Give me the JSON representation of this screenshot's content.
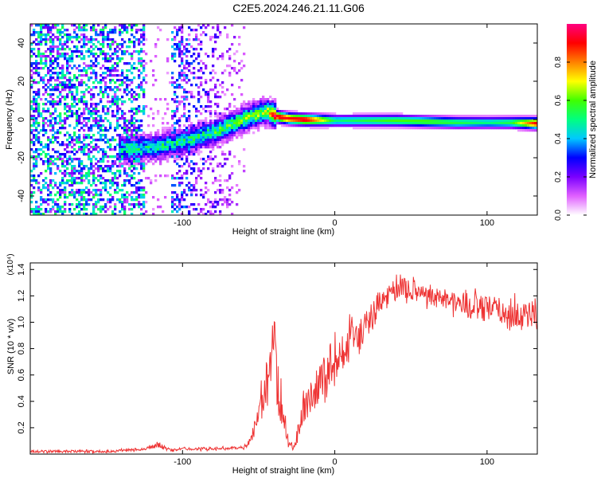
{
  "title": "C2E5.2024.246.21.11.G06",
  "chart_data": [
    {
      "type": "heatmap",
      "name": "spectrogram",
      "xlabel": "Height of straight line (km)",
      "ylabel": "Frequency (Hz)",
      "xlim": [
        -200,
        133
      ],
      "ylim": [
        -50,
        50
      ],
      "xticks": [
        -100,
        0,
        100
      ],
      "xtick_labels": [
        "-100",
        "0",
        "100"
      ],
      "yticks": [
        -40,
        -20,
        0,
        20,
        40
      ],
      "ytick_labels": [
        "-40",
        "-20",
        "0",
        "20",
        "40"
      ],
      "colorbar": {
        "label": "Normalized spectral amplitude",
        "range": [
          0,
          1
        ],
        "ticks": [
          0.0,
          0.2,
          0.4,
          0.6,
          0.8
        ],
        "tick_labels": [
          "0.0",
          "0.2",
          "0.4",
          "0.6",
          "0.8"
        ],
        "colors": [
          "#ffffff",
          "#e060ff",
          "#7a00ff",
          "#0000ff",
          "#00c8ff",
          "#00ff80",
          "#40ff00",
          "#ffff00",
          "#ff8000",
          "#ff0000",
          "#ff0080"
        ]
      },
      "ridge": {
        "x": [
          -140,
          -120,
          -100,
          -80,
          -60,
          -45,
          -38,
          -30,
          -20,
          0,
          20,
          40,
          60,
          80,
          100,
          115,
          133
        ],
        "y": [
          -15,
          -14,
          -11,
          -6,
          1,
          5,
          2,
          1,
          0.5,
          0,
          0,
          0,
          -0.5,
          -1,
          -1,
          -1,
          -1.5
        ],
        "amplitude": [
          0.3,
          0.35,
          0.35,
          0.4,
          0.45,
          0.5,
          0.95,
          0.9,
          0.95,
          0.5,
          0.55,
          0.6,
          0.6,
          0.55,
          0.5,
          0.55,
          0.95
        ]
      }
    },
    {
      "type": "line",
      "name": "snr",
      "xlabel": "Height of straight line (km)",
      "ylabel": "SNR (10 * v/v)",
      "y_multiplier": "(x10⁴)",
      "xlim": [
        -200,
        133
      ],
      "ylim": [
        0,
        1.45
      ],
      "xticks": [
        -100,
        0,
        100
      ],
      "xtick_labels": [
        "-100",
        "0",
        "100"
      ],
      "yticks": [
        0.2,
        0.4,
        0.6,
        0.8,
        1.0,
        1.2,
        1.4
      ],
      "ytick_labels": [
        "0.2",
        "0.4",
        "0.6",
        "0.8",
        "1.0",
        "1.2",
        "1.4"
      ],
      "color": "#ee3333",
      "series": [
        {
          "name": "SNR",
          "x": [
            -200,
            -180,
            -150,
            -125,
            -115,
            -108,
            -100,
            -80,
            -60,
            -55,
            -50,
            -46,
            -43,
            -40,
            -37,
            -33,
            -30,
            -27,
            -24,
            -20,
            -10,
            0,
            10,
            20,
            30,
            40,
            50,
            60,
            70,
            80,
            90,
            100,
            110,
            120,
            133
          ],
          "y": [
            0.02,
            0.02,
            0.02,
            0.04,
            0.07,
            0.03,
            0.04,
            0.04,
            0.05,
            0.1,
            0.3,
            0.55,
            0.5,
            0.95,
            0.45,
            0.25,
            0.08,
            0.05,
            0.18,
            0.35,
            0.55,
            0.7,
            0.85,
            0.95,
            1.15,
            1.25,
            1.25,
            1.22,
            1.18,
            1.15,
            1.12,
            1.1,
            1.08,
            1.05,
            1.08
          ],
          "noise": [
            0.01,
            0.01,
            0.01,
            0.01,
            0.02,
            0.01,
            0.01,
            0.01,
            0.01,
            0.04,
            0.12,
            0.2,
            0.2,
            0.15,
            0.2,
            0.1,
            0.03,
            0.03,
            0.08,
            0.12,
            0.15,
            0.14,
            0.14,
            0.13,
            0.1,
            0.09,
            0.08,
            0.08,
            0.08,
            0.09,
            0.1,
            0.1,
            0.12,
            0.12,
            0.12
          ]
        }
      ]
    }
  ]
}
